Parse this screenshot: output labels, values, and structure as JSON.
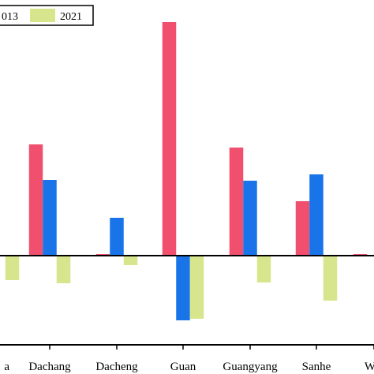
{
  "chart_data": {
    "type": "bar",
    "title": "",
    "xlabel": "",
    "ylabel": "",
    "categories": [
      "a",
      "Dachang",
      "Dacheng",
      "Guan",
      "Guangyang",
      "Sanhe",
      "W"
    ],
    "series": [
      {
        "name": "013",
        "color": "#f0506e",
        "values": [
          0,
          141,
          2,
          296,
          137,
          69,
          2
        ]
      },
      {
        "name": "",
        "color": "#1874e8",
        "values": [
          0,
          96,
          48,
          -82,
          95,
          103,
          0
        ]
      },
      {
        "name": "2021",
        "color": "#d7e68c",
        "values": [
          -31,
          -35,
          -12,
          -80,
          -34,
          -57,
          0
        ]
      }
    ],
    "ylim": [
      -113,
      324
    ],
    "grid": false,
    "legend_position": "top-left"
  }
}
